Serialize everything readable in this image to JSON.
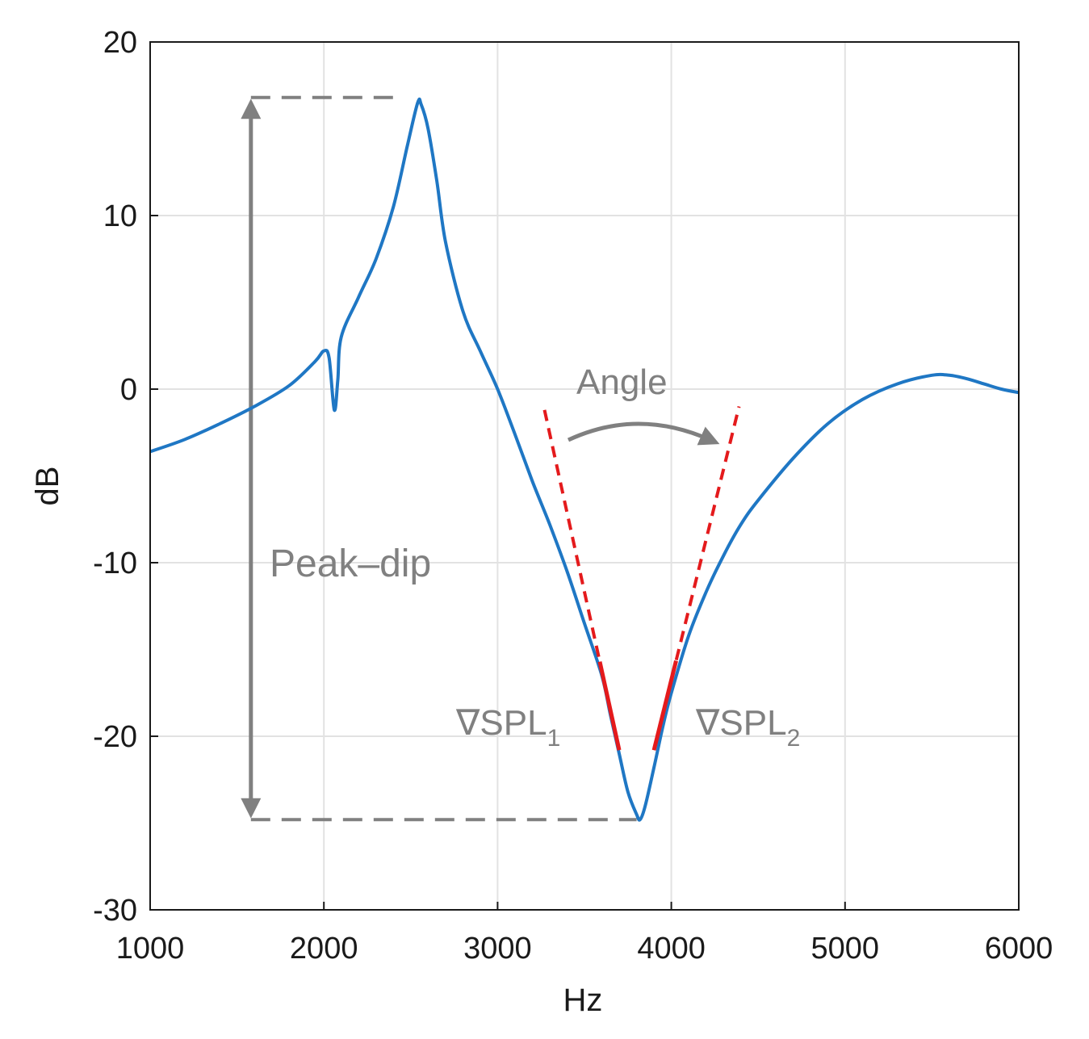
{
  "chart_data": {
    "type": "line",
    "xlabel": "Hz",
    "ylabel": "dB",
    "xlim": [
      1000,
      6000
    ],
    "ylim": [
      -30,
      20
    ],
    "xticks": [
      1000,
      2000,
      3000,
      4000,
      5000,
      6000
    ],
    "yticks": [
      -30,
      -20,
      -10,
      0,
      10,
      20
    ],
    "grid": true,
    "colors": {
      "line": "#1f77c4",
      "slope": "#e41a1c",
      "annotation": "#808080"
    },
    "series": [
      {
        "x": [
          1000,
          1200,
          1400,
          1600,
          1800,
          1950,
          2000,
          2030,
          2060,
          2080,
          2100,
          2200,
          2300,
          2400,
          2480,
          2540,
          2560,
          2600,
          2650,
          2700,
          2800,
          2900,
          3000,
          3100,
          3200,
          3300,
          3400,
          3500,
          3600,
          3650,
          3700,
          3750,
          3800,
          3820,
          3850,
          3900,
          3950,
          4000,
          4100,
          4200,
          4300,
          4400,
          4500,
          4700,
          4900,
          5100,
          5300,
          5500,
          5600,
          5700,
          5800,
          5900,
          6000
        ],
        "y": [
          -3.6,
          -2.9,
          -2.0,
          -1.0,
          0.2,
          1.6,
          2.2,
          1.8,
          -1.2,
          0.5,
          3.0,
          5.3,
          7.5,
          10.5,
          14.0,
          16.5,
          16.4,
          15.0,
          12.0,
          8.5,
          4.5,
          2.2,
          0.0,
          -2.6,
          -5.3,
          -7.8,
          -10.5,
          -13.5,
          -16.5,
          -18.8,
          -21.0,
          -23.2,
          -24.5,
          -24.8,
          -24.0,
          -21.8,
          -19.5,
          -17.5,
          -14.2,
          -11.7,
          -9.6,
          -7.8,
          -6.4,
          -4.0,
          -2.0,
          -0.6,
          0.3,
          0.8,
          0.8,
          0.6,
          0.3,
          0.0,
          -0.2
        ]
      }
    ],
    "slope_lines": [
      {
        "x": [
          3270,
          3700
        ],
        "y": [
          -1.2,
          -20.8
        ]
      },
      {
        "x": [
          3900,
          4390
        ],
        "y": [
          -20.8,
          -1.0
        ]
      }
    ],
    "peak_dip": {
      "peak": 16.8,
      "dip": -24.8,
      "x_arrow": 1580,
      "x_peak": 2540,
      "x_dip": 3800
    },
    "annotations": {
      "peak_dip": "Peak–dip",
      "angle": "Angle",
      "grad1": "∇SPL",
      "grad1_sub": "1",
      "grad2": "∇SPL",
      "grad2_sub": "2"
    }
  }
}
